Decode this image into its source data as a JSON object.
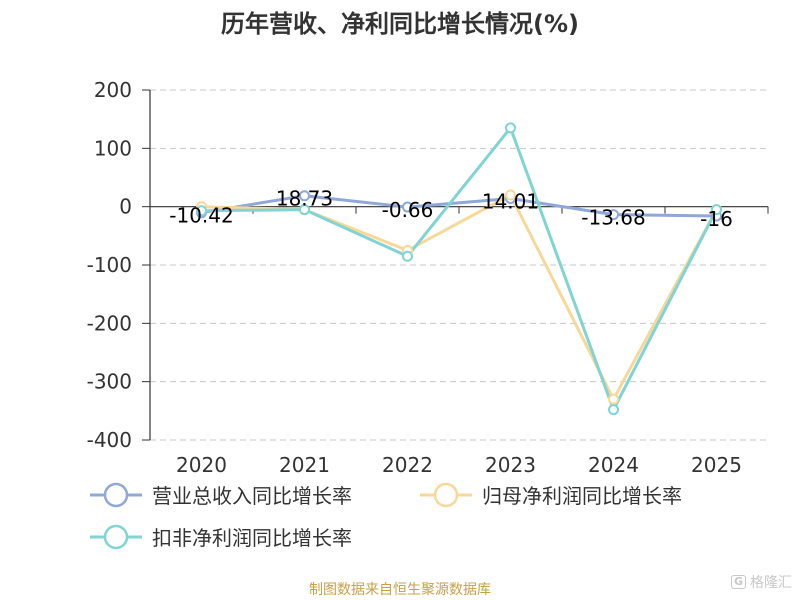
{
  "chart_data": {
    "type": "line",
    "title": "历年营收、净利同比增长情况(%)",
    "categories": [
      "2020",
      "2021",
      "2022",
      "2023",
      "2024",
      "2025"
    ],
    "ylim": [
      -400,
      200
    ],
    "yticks": [
      200,
      100,
      0,
      -100,
      -200,
      -300,
      -400
    ],
    "grid": true,
    "legend_position": "bottom-left",
    "series": [
      {
        "name": "营业总收入同比增长率",
        "color": "#8fa8d8",
        "values": [
          -10.42,
          18.73,
          -0.66,
          14.01,
          -13.68,
          -16
        ],
        "labels": [
          "-10.42",
          "18.73",
          "-0.66",
          "14.01",
          "-13.68",
          "-16"
        ]
      },
      {
        "name": "归母净利润同比增长率",
        "color": "#f8d898",
        "values": [
          0,
          -5,
          -75,
          20,
          -330,
          -5
        ]
      },
      {
        "name": "扣非净利润同比增长率",
        "color": "#80d4d4",
        "values": [
          -7,
          -5,
          -85,
          135,
          -348,
          -5
        ]
      }
    ]
  },
  "source": "制图数据来自恒生聚源数据库",
  "watermark": {
    "logo_text": "G",
    "text": "格隆汇"
  }
}
